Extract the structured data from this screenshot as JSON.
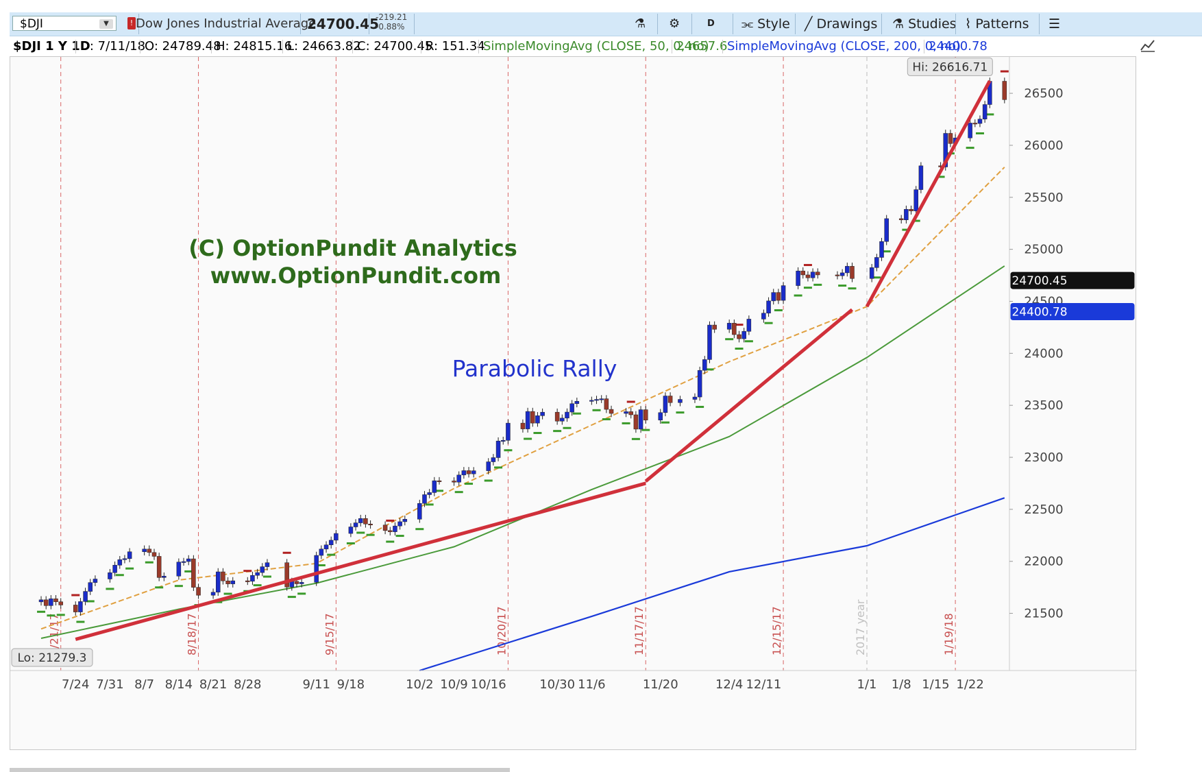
{
  "toolbar": {
    "symbol": "$DJI",
    "alert_badge": "!",
    "instrument_name": "Dow Jones Industrial Average",
    "last_price": "24700.45",
    "change": "-219.21",
    "change_pct": "-0.88%",
    "period_button": "D",
    "style_label": "Style",
    "drawings_label": "Drawings",
    "studies_label": "Studies",
    "patterns_label": "Patterns",
    "menu_icon": "menu-icon",
    "flask_icon": "flask-icon",
    "gear_icon": "gear-icon"
  },
  "info_bar": {
    "symbol_period": "$DJI 1 Y 1D",
    "date": "D: 7/11/18",
    "open": "O: 24789.48",
    "high": "H: 24815.16",
    "low": "L: 24663.82",
    "close": "C: 24700.45",
    "range": "R: 151.34",
    "sma50_label": "SimpleMovingAvg (CLOSE, 50, 0, no)",
    "sma50_value": "24657.6",
    "sma200_label": "SimpleMovingAvg (CLOSE, 200, 0, no)",
    "sma200_value": "24400.78"
  },
  "colors": {
    "up_candle": "#1a2cc9",
    "down_candle": "#9a3a2a",
    "sma50": "#4a9a3a",
    "sma200": "#1a3ad9",
    "sma_short": "#e0a040",
    "trendline": "#d0303a",
    "marker_green": "#3a9a2a",
    "marker_red": "#b02020",
    "event_line": "#d04040",
    "watermark": "#2e6b1c",
    "annotation": "#2233cc"
  },
  "chart_data": {
    "type": "candlestick",
    "instrument": "$DJI",
    "aggregation": "1D",
    "x_tick_labels": [
      "7/24",
      "7/31",
      "8/7",
      "8/14",
      "8/21",
      "8/28",
      "9/11",
      "9/18",
      "10/2",
      "10/9",
      "10/16",
      "10/30",
      "11/6",
      "11/20",
      "12/4",
      "12/11",
      "1/1",
      "1/8",
      "1/15",
      "1/22"
    ],
    "y_tick_labels": [
      "21500",
      "22000",
      "22500",
      "23000",
      "23500",
      "24000",
      "24500",
      "25000",
      "25500",
      "26000",
      "26500"
    ],
    "ylim": [
      21000,
      26800
    ],
    "grid": false,
    "event_lines": [
      {
        "date": "7/21/17",
        "label": "7/21/17"
      },
      {
        "date": "8/18/17",
        "label": "8/18/17"
      },
      {
        "date": "9/15/17",
        "label": "9/15/17"
      },
      {
        "date": "10/20/17",
        "label": "10/20/17"
      },
      {
        "date": "11/17/17",
        "label": "11/17/17"
      },
      {
        "date": "12/15/17",
        "label": "12/15/17"
      },
      {
        "date": "1/19/18",
        "label": "1/19/18"
      }
    ],
    "year_line": {
      "date": "1/1/18",
      "label": "2017 year"
    },
    "hi_label": "Hi: 26616.71",
    "lo_label": "Lo: 21279.3",
    "last_price_tag": "24700.45",
    "sma200_tag": "24400.78",
    "watermark_line1": "(C) OptionPundit Analytics",
    "watermark_line2": "www.OptionPundit.com",
    "annotation": "Parabolic Rally",
    "closes": [
      [
        "7/17/17",
        21630
      ],
      [
        "7/18/17",
        21574
      ],
      [
        "7/19/17",
        21640
      ],
      [
        "7/20/17",
        21611
      ],
      [
        "7/21/17",
        21580
      ],
      [
        "7/24/17",
        21513
      ],
      [
        "7/25/17",
        21613
      ],
      [
        "7/26/17",
        21711
      ],
      [
        "7/27/17",
        21796
      ],
      [
        "7/28/17",
        21830
      ],
      [
        "7/31/17",
        21891
      ],
      [
        "8/1/17",
        21963
      ],
      [
        "8/2/17",
        22016
      ],
      [
        "8/3/17",
        22026
      ],
      [
        "8/4/17",
        22092
      ],
      [
        "8/7/17",
        22118
      ],
      [
        "8/8/17",
        22085
      ],
      [
        "8/9/17",
        22048
      ],
      [
        "8/10/17",
        21844
      ],
      [
        "8/11/17",
        21858
      ],
      [
        "8/14/17",
        21993
      ],
      [
        "8/15/17",
        21998
      ],
      [
        "8/16/17",
        22024
      ],
      [
        "8/17/17",
        21750
      ],
      [
        "8/18/17",
        21674
      ],
      [
        "8/21/17",
        21703
      ],
      [
        "8/22/17",
        21899
      ],
      [
        "8/23/17",
        21812
      ],
      [
        "8/24/17",
        21783
      ],
      [
        "8/25/17",
        21813
      ],
      [
        "8/28/17",
        21808
      ],
      [
        "8/29/17",
        21865
      ],
      [
        "8/30/17",
        21892
      ],
      [
        "8/31/17",
        21948
      ],
      [
        "9/1/17",
        21987
      ],
      [
        "9/5/17",
        21753
      ],
      [
        "9/6/17",
        21807
      ],
      [
        "9/7/17",
        21784
      ],
      [
        "9/8/17",
        21798
      ],
      [
        "9/11/17",
        22057
      ],
      [
        "9/12/17",
        22118
      ],
      [
        "9/13/17",
        22158
      ],
      [
        "9/14/17",
        22203
      ],
      [
        "9/15/17",
        22268
      ],
      [
        "9/18/17",
        22331
      ],
      [
        "9/19/17",
        22370
      ],
      [
        "9/20/17",
        22412
      ],
      [
        "9/21/17",
        22359
      ],
      [
        "9/22/17",
        22349
      ],
      [
        "9/25/17",
        22296
      ],
      [
        "9/26/17",
        22284
      ],
      [
        "9/27/17",
        22340
      ],
      [
        "9/28/17",
        22381
      ],
      [
        "9/29/17",
        22405
      ],
      [
        "10/2/17",
        22557
      ],
      [
        "10/3/17",
        22641
      ],
      [
        "10/4/17",
        22661
      ],
      [
        "10/5/17",
        22775
      ],
      [
        "10/6/17",
        22773
      ],
      [
        "10/9/17",
        22761
      ],
      [
        "10/10/17",
        22830
      ],
      [
        "10/11/17",
        22872
      ],
      [
        "10/12/17",
        22841
      ],
      [
        "10/13/17",
        22871
      ],
      [
        "10/16/17",
        22957
      ],
      [
        "10/17/17",
        22997
      ],
      [
        "10/18/17",
        23157
      ],
      [
        "10/19/17",
        23163
      ],
      [
        "10/20/17",
        23329
      ],
      [
        "10/23/17",
        23273
      ],
      [
        "10/24/17",
        23441
      ],
      [
        "10/25/17",
        23329
      ],
      [
        "10/26/17",
        23400
      ],
      [
        "10/27/17",
        23434
      ],
      [
        "10/30/17",
        23348
      ],
      [
        "10/31/17",
        23377
      ],
      [
        "11/1/17",
        23435
      ],
      [
        "11/2/17",
        23516
      ],
      [
        "11/3/17",
        23539
      ],
      [
        "11/6/17",
        23548
      ],
      [
        "11/7/17",
        23557
      ],
      [
        "11/8/17",
        23563
      ],
      [
        "11/9/17",
        23461
      ],
      [
        "11/10/17",
        23422
      ],
      [
        "11/13/17",
        23439
      ],
      [
        "11/14/17",
        23409
      ],
      [
        "11/15/17",
        23271
      ],
      [
        "11/16/17",
        23458
      ],
      [
        "11/17/17",
        23358
      ],
      [
        "11/20/17",
        23430
      ],
      [
        "11/21/17",
        23590
      ],
      [
        "11/22/17",
        23526
      ],
      [
        "11/24/17",
        23557
      ],
      [
        "11/27/17",
        23580
      ],
      [
        "11/28/17",
        23836
      ],
      [
        "11/29/17",
        23940
      ],
      [
        "11/30/17",
        24272
      ],
      [
        "12/1/17",
        24231
      ],
      [
        "12/4/17",
        24290
      ],
      [
        "12/5/17",
        24180
      ],
      [
        "12/6/17",
        24140
      ],
      [
        "12/7/17",
        24211
      ],
      [
        "12/8/17",
        24329
      ],
      [
        "12/11/17",
        24386
      ],
      [
        "12/12/17",
        24504
      ],
      [
        "12/13/17",
        24585
      ],
      [
        "12/14/17",
        24509
      ],
      [
        "12/15/17",
        24651
      ],
      [
        "12/18/17",
        24792
      ],
      [
        "12/19/17",
        24754
      ],
      [
        "12/20/17",
        24726
      ],
      [
        "12/21/17",
        24782
      ],
      [
        "12/22/17",
        24754
      ],
      [
        "12/26/17",
        24746
      ],
      [
        "12/27/17",
        24774
      ],
      [
        "12/28/17",
        24837
      ],
      [
        "12/29/17",
        24719
      ],
      [
        "1/2/18",
        24824
      ],
      [
        "1/3/18",
        24922
      ],
      [
        "1/4/18",
        25075
      ],
      [
        "1/5/18",
        25295
      ],
      [
        "1/8/18",
        25283
      ],
      [
        "1/9/18",
        25385
      ],
      [
        "1/10/18",
        25369
      ],
      [
        "1/11/18",
        25574
      ],
      [
        "1/12/18",
        25803
      ],
      [
        "1/16/18",
        25792
      ],
      [
        "1/17/18",
        26115
      ],
      [
        "1/18/18",
        26017
      ],
      [
        "1/19/18",
        26071
      ],
      [
        "1/22/18",
        26214
      ],
      [
        "1/23/18",
        26210
      ],
      [
        "1/24/18",
        26252
      ],
      [
        "1/25/18",
        26392
      ],
      [
        "1/26/18",
        26616
      ],
      [
        "1/29/18",
        26439
      ]
    ],
    "sma50_points": [
      [
        "7/17/17",
        21260
      ],
      [
        "8/14/17",
        21540
      ],
      [
        "9/11/17",
        21790
      ],
      [
        "10/9/17",
        22140
      ],
      [
        "11/6/17",
        22690
      ],
      [
        "12/4/17",
        23200
      ],
      [
        "1/1/18",
        23960
      ],
      [
        "1/29/18",
        24840
      ]
    ],
    "sma200_points": [
      [
        "10/2/17",
        20950
      ],
      [
        "11/6/17",
        21470
      ],
      [
        "12/4/17",
        21900
      ],
      [
        "1/1/18",
        22150
      ],
      [
        "1/29/18",
        22610
      ]
    ],
    "sma_short_points": [
      [
        "7/17/17",
        21350
      ],
      [
        "8/14/17",
        21820
      ],
      [
        "9/11/17",
        21980
      ],
      [
        "10/9/17",
        22700
      ],
      [
        "11/6/17",
        23310
      ],
      [
        "12/4/17",
        23920
      ],
      [
        "1/1/18",
        24450
      ],
      [
        "1/29/18",
        25790
      ]
    ],
    "trendlines": [
      {
        "from": [
          "7/24/17",
          21250
        ],
        "to": [
          "11/17/17",
          22750
        ]
      },
      {
        "from": [
          "11/17/17",
          22770
        ],
        "to": [
          "12/29/17",
          24420
        ]
      },
      {
        "from": [
          "1/1/18",
          24450
        ],
        "to": [
          "1/26/18",
          26620
        ]
      }
    ]
  }
}
